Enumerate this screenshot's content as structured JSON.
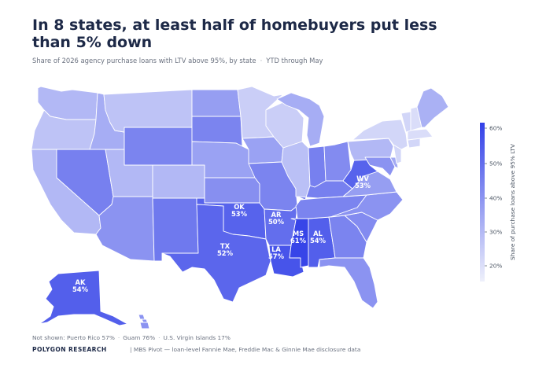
{
  "title": "In 8 states, at least half of homebuyers put less than 5% down",
  "subtitle": {
    "metric": "Share of 2026 agency purchase loans with LTV above 95%, by state",
    "separator": "·",
    "period": "YTD through May"
  },
  "map_data": {
    "type": "choropleth",
    "scale": {
      "min": 15,
      "max": 62,
      "low_color": "#eef0fb",
      "high_color": "#3341e8"
    },
    "labeled_states": [
      {
        "code": "WV",
        "value_label": "53%",
        "value": 53
      },
      {
        "code": "OK",
        "value_label": "53%",
        "value": 53
      },
      {
        "code": "AR",
        "value_label": "50%",
        "value": 50
      },
      {
        "code": "MS",
        "value_label": "61%",
        "value": 61
      },
      {
        "code": "AL",
        "value_label": "54%",
        "value": 54
      },
      {
        "code": "TX",
        "value_label": "52%",
        "value": 52
      },
      {
        "code": "LA",
        "value_label": "57%",
        "value": 57
      },
      {
        "code": "AK",
        "value_label": "54%",
        "value": 54
      }
    ],
    "state_values": {
      "WA": 30,
      "OR": 27,
      "CA": 30,
      "NV": 45,
      "ID": 33,
      "MT": 27,
      "WY": 44,
      "UT": 30,
      "AZ": 40,
      "CO": 30,
      "NM": 47,
      "ND": 37,
      "SD": 44,
      "NE": 36,
      "KS": 41,
      "MN": 24,
      "IA": 36,
      "MO": 44,
      "WI": 24,
      "IL": 28,
      "MI": 33,
      "IN": 45,
      "OH": 42,
      "KY": 45,
      "TN": 44,
      "NC": 40,
      "SC": 42,
      "GA": 44,
      "FL": 40,
      "VA": 37,
      "PA": 30,
      "NY": 22,
      "ME": 32,
      "NH": 20,
      "VT": 22,
      "MA": 20,
      "NJ": 22,
      "MD": 40,
      "DE": 34,
      "CT": 22,
      "HI": 40
    }
  },
  "legend": {
    "title": "Share of purchase loans above 95% LTV",
    "ticks": [
      "60%",
      "50%",
      "40%",
      "30%",
      "20%"
    ]
  },
  "footnote": {
    "label": "Not shown:",
    "items": [
      "Puerto Rico 57%",
      "Guam 76%",
      "U.S. Virgin Islands 17%"
    ],
    "separator": "·"
  },
  "brand": "POLYGON RESEARCH",
  "source": "|  MBS Pivot — loan-level Fannie Mae, Freddie Mac & Ginnie Mae disclosure data"
}
